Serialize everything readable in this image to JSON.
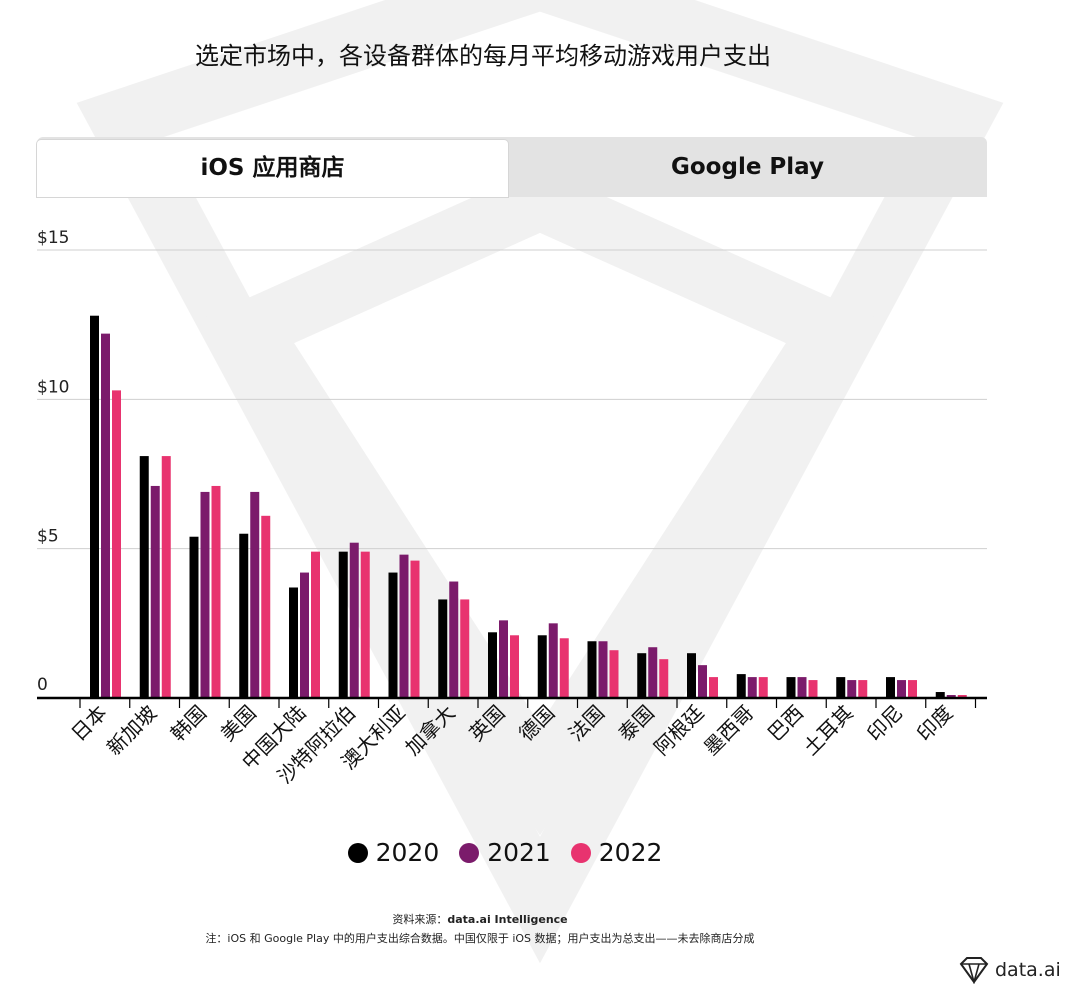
{
  "title": "选定市场中，各设备群体的每月平均移动游戏用户支出",
  "tabs": [
    {
      "label": "iOS 应用商店",
      "active": true
    },
    {
      "label": "Google Play",
      "active": false
    }
  ],
  "chart_data": {
    "type": "bar",
    "ylim": [
      0,
      15
    ],
    "yticks": [
      {
        "value": 0,
        "label": "0"
      },
      {
        "value": 5,
        "label": "$5"
      },
      {
        "value": 10,
        "label": "$10"
      },
      {
        "value": 15,
        "label": "$15"
      }
    ],
    "categories": [
      "日本",
      "新加坡",
      "韩国",
      "美国",
      "中国大陆",
      "沙特阿拉伯",
      "澳大利亚",
      "加拿大",
      "英国",
      "德国",
      "法国",
      "泰国",
      "阿根廷",
      "墨西哥",
      "巴西",
      "土耳其",
      "印尼",
      "印度"
    ],
    "series": [
      {
        "name": "2020",
        "color": "#000000",
        "values": [
          12.8,
          8.1,
          5.4,
          5.5,
          3.7,
          4.9,
          4.2,
          3.3,
          2.2,
          2.1,
          1.9,
          1.5,
          1.5,
          0.8,
          0.7,
          0.7,
          0.7,
          0.2
        ]
      },
      {
        "name": "2021",
        "color": "#7b1b6b",
        "values": [
          12.2,
          7.1,
          6.9,
          6.9,
          4.2,
          5.2,
          4.8,
          3.9,
          2.6,
          2.5,
          1.9,
          1.7,
          1.1,
          0.7,
          0.7,
          0.6,
          0.6,
          0.1
        ]
      },
      {
        "name": "2022",
        "color": "#e8336f",
        "values": [
          10.3,
          8.1,
          7.1,
          6.1,
          4.9,
          4.9,
          4.6,
          3.3,
          2.1,
          2.0,
          1.6,
          1.3,
          0.7,
          0.7,
          0.6,
          0.6,
          0.6,
          0.1
        ]
      }
    ]
  },
  "source_label": "资料来源：",
  "source_name": "data.ai Intelligence",
  "note": "注：iOS 和 Google Play 中的用户支出综合数据。中国仅限于 iOS 数据；用户支出为总支出——未去除商店分成",
  "logo_text": "data.ai"
}
